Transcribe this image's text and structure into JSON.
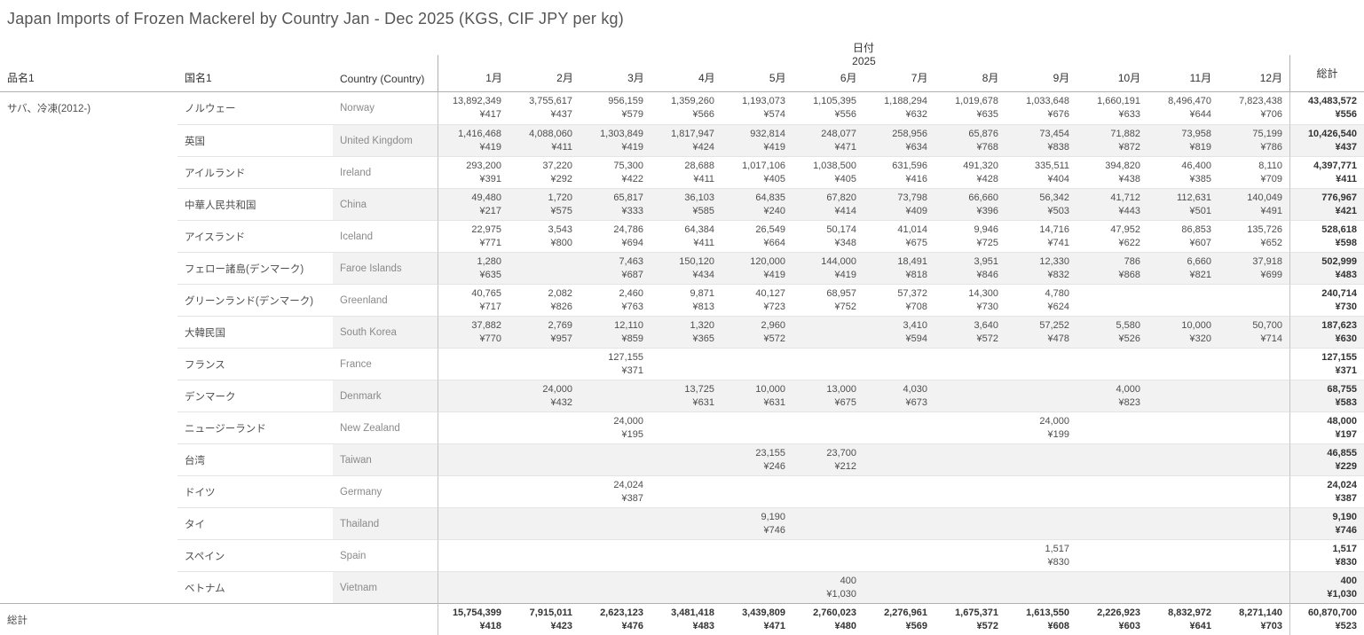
{
  "title": "Japan Imports of Frozen Mackerel by Country Jan - Dec 2025 (KGS, CIF JPY per kg)",
  "chart_data": {
    "type": "table",
    "title": "Japan Imports of Frozen Mackerel by Country Jan - Dec 2025 (KGS, CIF JPY per kg)",
    "units": {
      "quantity": "KGS",
      "price": "CIF JPY per kg"
    },
    "columns": {
      "product": "品名1",
      "country_jp": "国名1",
      "country_en": "Country (Country)",
      "date": "日付",
      "year": "2025",
      "months": [
        "1月",
        "2月",
        "3月",
        "4月",
        "5月",
        "6月",
        "7月",
        "8月",
        "9月",
        "10月",
        "11月",
        "12月"
      ],
      "total": "総計"
    },
    "product_name": "サバ、冷凍(2012-)",
    "rows": [
      {
        "jp": "ノルウェー",
        "en": "Norway",
        "cells": [
          [
            "13,892,349",
            "¥417"
          ],
          [
            "3,755,617",
            "¥437"
          ],
          [
            "956,159",
            "¥579"
          ],
          [
            "1,359,260",
            "¥566"
          ],
          [
            "1,193,073",
            "¥574"
          ],
          [
            "1,105,395",
            "¥556"
          ],
          [
            "1,188,294",
            "¥632"
          ],
          [
            "1,019,678",
            "¥635"
          ],
          [
            "1,033,648",
            "¥676"
          ],
          [
            "1,660,191",
            "¥633"
          ],
          [
            "8,496,470",
            "¥644"
          ],
          [
            "7,823,438",
            "¥706"
          ]
        ],
        "total": [
          "43,483,572",
          "¥556"
        ]
      },
      {
        "jp": "英国",
        "en": "United Kingdom",
        "cells": [
          [
            "1,416,468",
            "¥419"
          ],
          [
            "4,088,060",
            "¥411"
          ],
          [
            "1,303,849",
            "¥419"
          ],
          [
            "1,817,947",
            "¥424"
          ],
          [
            "932,814",
            "¥419"
          ],
          [
            "248,077",
            "¥471"
          ],
          [
            "258,956",
            "¥634"
          ],
          [
            "65,876",
            "¥768"
          ],
          [
            "73,454",
            "¥838"
          ],
          [
            "71,882",
            "¥872"
          ],
          [
            "73,958",
            "¥819"
          ],
          [
            "75,199",
            "¥786"
          ]
        ],
        "total": [
          "10,426,540",
          "¥437"
        ]
      },
      {
        "jp": "アイルランド",
        "en": "Ireland",
        "cells": [
          [
            "293,200",
            "¥391"
          ],
          [
            "37,220",
            "¥292"
          ],
          [
            "75,300",
            "¥422"
          ],
          [
            "28,688",
            "¥411"
          ],
          [
            "1,017,106",
            "¥405"
          ],
          [
            "1,038,500",
            "¥405"
          ],
          [
            "631,596",
            "¥416"
          ],
          [
            "491,320",
            "¥428"
          ],
          [
            "335,511",
            "¥404"
          ],
          [
            "394,820",
            "¥438"
          ],
          [
            "46,400",
            "¥385"
          ],
          [
            "8,110",
            "¥709"
          ]
        ],
        "total": [
          "4,397,771",
          "¥411"
        ]
      },
      {
        "jp": "中華人民共和国",
        "en": "China",
        "cells": [
          [
            "49,480",
            "¥217"
          ],
          [
            "1,720",
            "¥575"
          ],
          [
            "65,817",
            "¥333"
          ],
          [
            "36,103",
            "¥585"
          ],
          [
            "64,835",
            "¥240"
          ],
          [
            "67,820",
            "¥414"
          ],
          [
            "73,798",
            "¥409"
          ],
          [
            "66,660",
            "¥396"
          ],
          [
            "56,342",
            "¥503"
          ],
          [
            "41,712",
            "¥443"
          ],
          [
            "112,631",
            "¥501"
          ],
          [
            "140,049",
            "¥491"
          ]
        ],
        "total": [
          "776,967",
          "¥421"
        ]
      },
      {
        "jp": "アイスランド",
        "en": "Iceland",
        "cells": [
          [
            "22,975",
            "¥771"
          ],
          [
            "3,543",
            "¥800"
          ],
          [
            "24,786",
            "¥694"
          ],
          [
            "64,384",
            "¥411"
          ],
          [
            "26,549",
            "¥664"
          ],
          [
            "50,174",
            "¥348"
          ],
          [
            "41,014",
            "¥675"
          ],
          [
            "9,946",
            "¥725"
          ],
          [
            "14,716",
            "¥741"
          ],
          [
            "47,952",
            "¥622"
          ],
          [
            "86,853",
            "¥607"
          ],
          [
            "135,726",
            "¥652"
          ]
        ],
        "total": [
          "528,618",
          "¥598"
        ]
      },
      {
        "jp": "フェロー諸島(デンマーク)",
        "en": "Faroe Islands",
        "cells": [
          [
            "1,280",
            "¥635"
          ],
          null,
          [
            "7,463",
            "¥687"
          ],
          [
            "150,120",
            "¥434"
          ],
          [
            "120,000",
            "¥419"
          ],
          [
            "144,000",
            "¥419"
          ],
          [
            "18,491",
            "¥818"
          ],
          [
            "3,951",
            "¥846"
          ],
          [
            "12,330",
            "¥832"
          ],
          [
            "786",
            "¥868"
          ],
          [
            "6,660",
            "¥821"
          ],
          [
            "37,918",
            "¥699"
          ]
        ],
        "total": [
          "502,999",
          "¥483"
        ]
      },
      {
        "jp": "グリーンランド(デンマーク)",
        "en": "Greenland",
        "cells": [
          [
            "40,765",
            "¥717"
          ],
          [
            "2,082",
            "¥826"
          ],
          [
            "2,460",
            "¥763"
          ],
          [
            "9,871",
            "¥813"
          ],
          [
            "40,127",
            "¥723"
          ],
          [
            "68,957",
            "¥752"
          ],
          [
            "57,372",
            "¥708"
          ],
          [
            "14,300",
            "¥730"
          ],
          [
            "4,780",
            "¥624"
          ],
          null,
          null,
          null
        ],
        "total": [
          "240,714",
          "¥730"
        ]
      },
      {
        "jp": "大韓民国",
        "en": "South Korea",
        "cells": [
          [
            "37,882",
            "¥770"
          ],
          [
            "2,769",
            "¥957"
          ],
          [
            "12,110",
            "¥859"
          ],
          [
            "1,320",
            "¥365"
          ],
          [
            "2,960",
            "¥572"
          ],
          null,
          [
            "3,410",
            "¥594"
          ],
          [
            "3,640",
            "¥572"
          ],
          [
            "57,252",
            "¥478"
          ],
          [
            "5,580",
            "¥526"
          ],
          [
            "10,000",
            "¥320"
          ],
          [
            "50,700",
            "¥714"
          ]
        ],
        "total": [
          "187,623",
          "¥630"
        ]
      },
      {
        "jp": "フランス",
        "en": "France",
        "cells": [
          null,
          null,
          [
            "127,155",
            "¥371"
          ],
          null,
          null,
          null,
          null,
          null,
          null,
          null,
          null,
          null
        ],
        "total": [
          "127,155",
          "¥371"
        ]
      },
      {
        "jp": "デンマーク",
        "en": "Denmark",
        "cells": [
          null,
          [
            "24,000",
            "¥432"
          ],
          null,
          [
            "13,725",
            "¥631"
          ],
          [
            "10,000",
            "¥631"
          ],
          [
            "13,000",
            "¥675"
          ],
          [
            "4,030",
            "¥673"
          ],
          null,
          null,
          [
            "4,000",
            "¥823"
          ],
          null,
          null
        ],
        "total": [
          "68,755",
          "¥583"
        ]
      },
      {
        "jp": "ニュージーランド",
        "en": "New Zealand",
        "cells": [
          null,
          null,
          [
            "24,000",
            "¥195"
          ],
          null,
          null,
          null,
          null,
          null,
          [
            "24,000",
            "¥199"
          ],
          null,
          null,
          null
        ],
        "total": [
          "48,000",
          "¥197"
        ]
      },
      {
        "jp": "台湾",
        "en": "Taiwan",
        "cells": [
          null,
          null,
          null,
          null,
          [
            "23,155",
            "¥246"
          ],
          [
            "23,700",
            "¥212"
          ],
          null,
          null,
          null,
          null,
          null,
          null
        ],
        "total": [
          "46,855",
          "¥229"
        ]
      },
      {
        "jp": "ドイツ",
        "en": "Germany",
        "cells": [
          null,
          null,
          [
            "24,024",
            "¥387"
          ],
          null,
          null,
          null,
          null,
          null,
          null,
          null,
          null,
          null
        ],
        "total": [
          "24,024",
          "¥387"
        ]
      },
      {
        "jp": "タイ",
        "en": "Thailand",
        "cells": [
          null,
          null,
          null,
          null,
          [
            "9,190",
            "¥746"
          ],
          null,
          null,
          null,
          null,
          null,
          null,
          null
        ],
        "total": [
          "9,190",
          "¥746"
        ]
      },
      {
        "jp": "スペイン",
        "en": "Spain",
        "cells": [
          null,
          null,
          null,
          null,
          null,
          null,
          null,
          null,
          [
            "1,517",
            "¥830"
          ],
          null,
          null,
          null
        ],
        "total": [
          "1,517",
          "¥830"
        ]
      },
      {
        "jp": "ベトナム",
        "en": "Vietnam",
        "cells": [
          null,
          null,
          null,
          null,
          null,
          [
            "400",
            "¥1,030"
          ],
          null,
          null,
          null,
          null,
          null,
          null
        ],
        "total": [
          "400",
          "¥1,030"
        ]
      }
    ],
    "grand_total": {
      "label": "総計",
      "cells": [
        [
          "15,754,399",
          "¥418"
        ],
        [
          "7,915,011",
          "¥423"
        ],
        [
          "2,623,123",
          "¥476"
        ],
        [
          "3,481,418",
          "¥483"
        ],
        [
          "3,439,809",
          "¥471"
        ],
        [
          "2,760,023",
          "¥480"
        ],
        [
          "2,276,961",
          "¥569"
        ],
        [
          "1,675,371",
          "¥572"
        ],
        [
          "1,613,550",
          "¥608"
        ],
        [
          "2,226,923",
          "¥603"
        ],
        [
          "8,832,972",
          "¥641"
        ],
        [
          "8,271,140",
          "¥703"
        ]
      ],
      "total": [
        "60,870,700",
        "¥523"
      ]
    }
  }
}
